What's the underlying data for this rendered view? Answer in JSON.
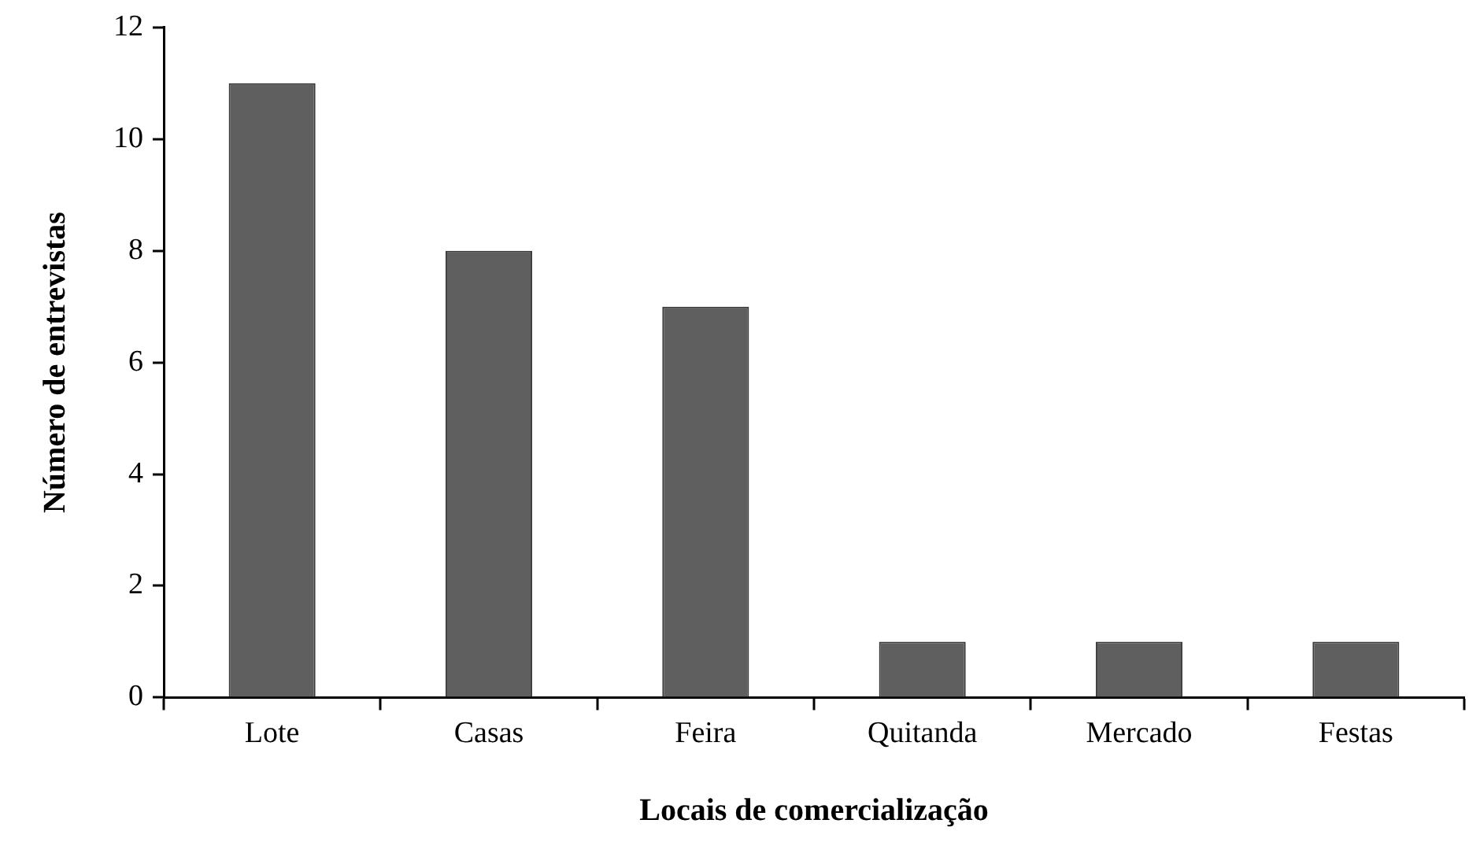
{
  "chart_data": {
    "type": "bar",
    "xlabel": "Locais de comercialização",
    "ylabel": "Número de entrevistas",
    "categories": [
      "Lote",
      "Casas",
      "Feira",
      "Quitanda",
      "Mercado",
      "Festas"
    ],
    "values": [
      11,
      8,
      7,
      1,
      1,
      1
    ],
    "color": "#5f5f5f",
    "ylim": [
      0,
      12
    ],
    "yticks": [
      0,
      2,
      4,
      6,
      8,
      10,
      12
    ],
    "grid": false,
    "legend": false
  }
}
